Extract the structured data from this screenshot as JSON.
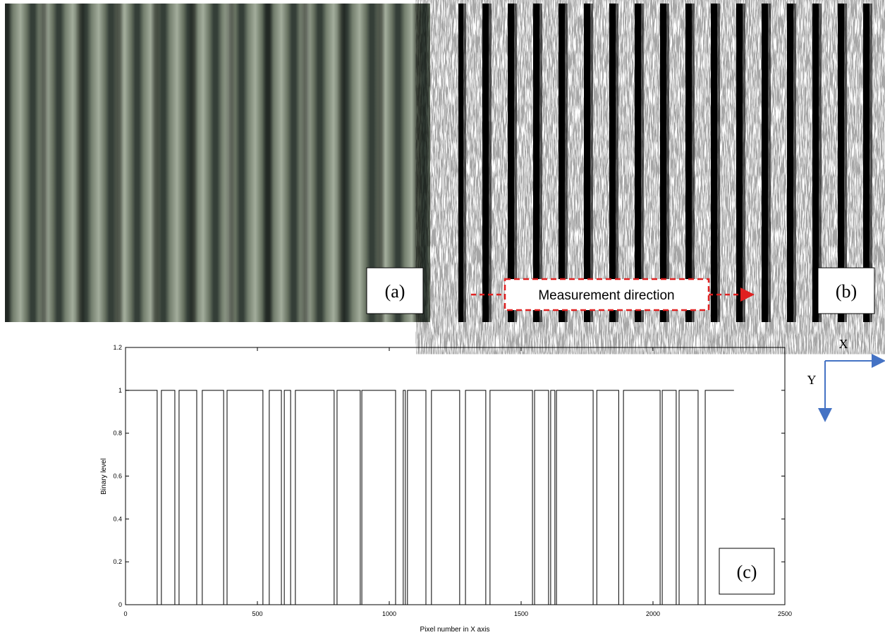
{
  "images": [
    {
      "label": "(a)"
    },
    {
      "label": "(b)",
      "annotation": "Measurement direction"
    }
  ],
  "axes_indicator": {
    "x_label": "X",
    "y_label": "Y"
  },
  "chart_data": {
    "type": "line",
    "annotation": "(c)",
    "x_label": "Pixel number in X axis",
    "y_label": "Binary level",
    "xlim": [
      0,
      2500
    ],
    "xticks": [
      0,
      500,
      1000,
      1500,
      2000,
      2500
    ],
    "ylim": [
      0,
      1.2
    ],
    "yticks": [
      0,
      0.2,
      0.4,
      0.6,
      0.8,
      1,
      1.2
    ],
    "color": "#000000",
    "grid": false,
    "x": [
      0,
      120,
      120,
      136,
      136,
      187,
      187,
      203,
      203,
      270,
      270,
      291,
      291,
      372,
      372,
      385,
      385,
      521,
      521,
      545,
      545,
      591,
      591,
      602,
      602,
      626,
      626,
      644,
      644,
      791,
      791,
      802,
      802,
      890,
      890,
      896,
      896,
      1024,
      1024,
      1053,
      1053,
      1061,
      1061,
      1069,
      1069,
      1139,
      1139,
      1160,
      1160,
      1267,
      1267,
      1289,
      1289,
      1366,
      1366,
      1382,
      1382,
      1543,
      1543,
      1551,
      1551,
      1604,
      1604,
      1612,
      1612,
      1628,
      1628,
      1634,
      1634,
      1773,
      1773,
      1787,
      1787,
      1870,
      1870,
      1888,
      1888,
      2027,
      2027,
      2035,
      2035,
      2088,
      2088,
      2099,
      2099,
      2171,
      2171,
      2198,
      2198,
      2307
    ],
    "values": [
      1,
      1,
      0,
      0,
      1,
      1,
      0,
      0,
      1,
      1,
      0,
      0,
      1,
      1,
      0,
      0,
      1,
      1,
      0,
      0,
      1,
      1,
      0,
      0,
      1,
      1,
      0,
      0,
      1,
      1,
      0,
      0,
      1,
      1,
      0,
      0,
      1,
      1,
      0,
      0,
      1,
      1,
      0,
      0,
      1,
      1,
      0,
      0,
      1,
      1,
      0,
      0,
      1,
      1,
      0,
      0,
      1,
      1,
      0,
      0,
      1,
      1,
      0,
      0,
      1,
      1,
      0,
      0,
      1,
      1,
      0,
      0,
      1,
      1,
      0,
      0,
      1,
      1,
      0,
      0,
      1,
      1,
      0,
      0,
      1,
      1,
      0,
      0,
      1,
      1
    ]
  }
}
